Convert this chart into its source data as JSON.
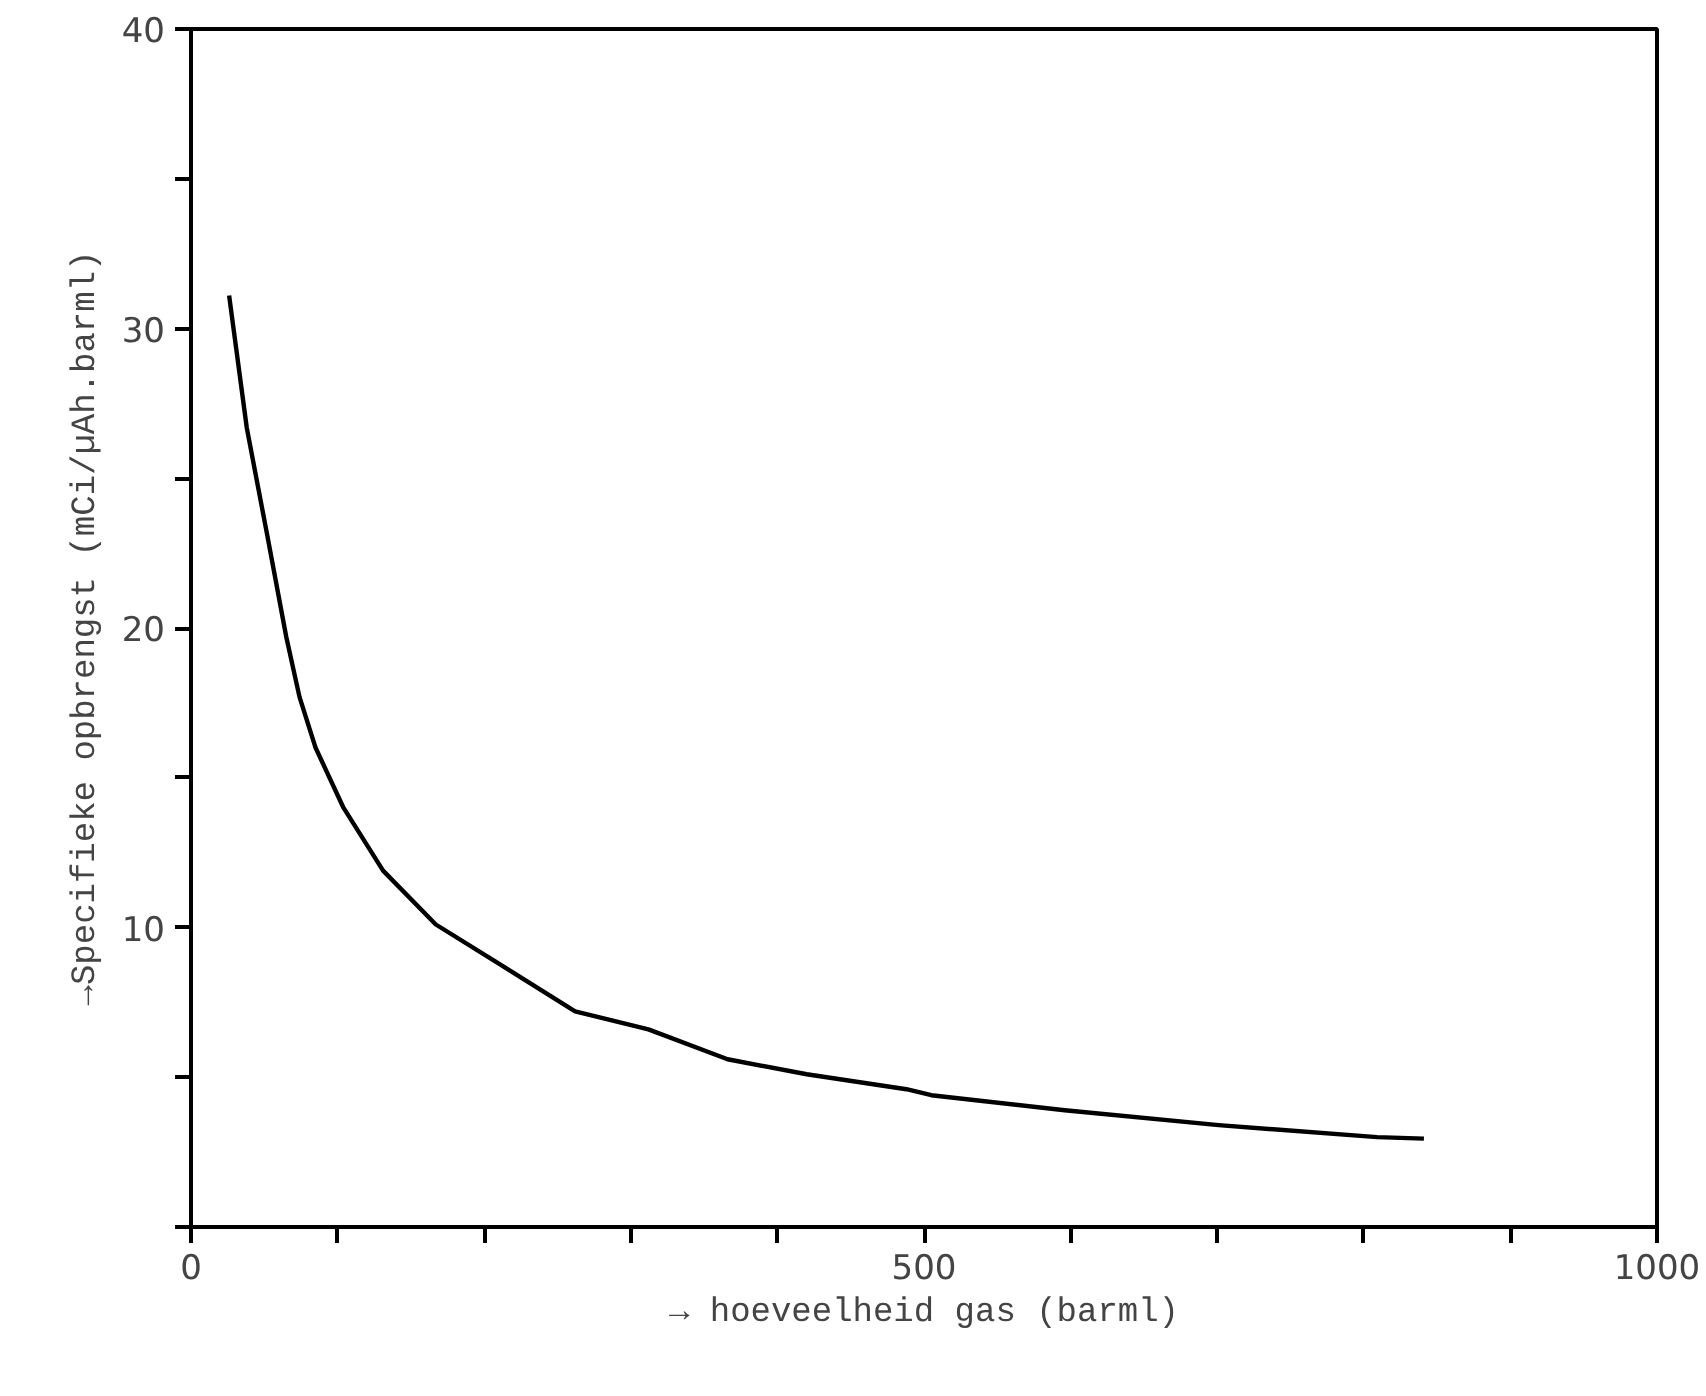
{
  "chart_data": {
    "type": "line",
    "xlabel": "→ hoeveelheid gas (barml)",
    "ylabel": "→Specifieke opbrengst (mCi/µAh.barml)",
    "xlim": [
      0,
      1000
    ],
    "ylim": [
      0,
      40
    ],
    "xticks": [
      0,
      {
        "value": 100,
        "label": null
      },
      {
        "value": 200,
        "label": null
      },
      {
        "value": 300,
        "label": null
      },
      {
        "value": 400,
        "label": null
      },
      500,
      {
        "value": 600,
        "label": null
      },
      {
        "value": 700,
        "label": null
      },
      {
        "value": 800,
        "label": null
      },
      {
        "value": 900,
        "label": null
      },
      1000
    ],
    "yticks": [
      {
        "value": 0,
        "label": null
      },
      {
        "value": 5,
        "label": null
      },
      10,
      {
        "value": 15,
        "label": null
      },
      20,
      {
        "value": 25,
        "label": null
      },
      30,
      {
        "value": 35,
        "label": null
      },
      40
    ],
    "grid": false,
    "marker": "none",
    "line_style": "solid",
    "series": [
      {
        "color": "#000000",
        "x": [
          26,
          38,
          52,
          65,
          74,
          85,
          104,
          131,
          167,
          213,
          262,
          312,
          366,
          420,
          488,
          505,
          596,
          701,
          809,
          841
        ],
        "values": [
          31.1,
          26.7,
          23.1,
          19.7,
          17.7,
          16.0,
          14.0,
          11.9,
          10.1,
          8.7,
          7.2,
          6.6,
          5.6,
          5.1,
          4.6,
          4.4,
          3.9,
          3.4,
          3.0,
          2.95
        ]
      }
    ]
  }
}
